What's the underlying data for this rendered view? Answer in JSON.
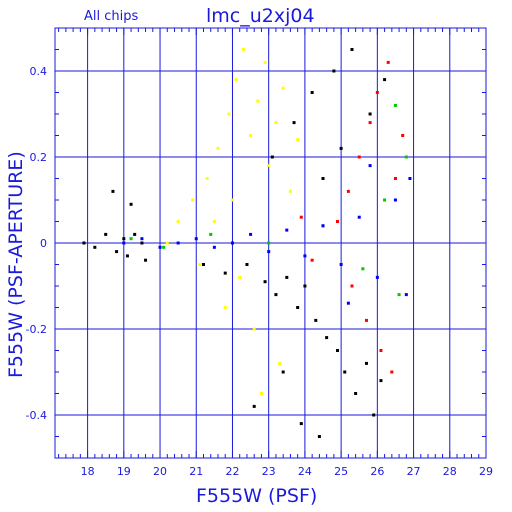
{
  "header": {
    "left_label": "All chips",
    "title": "lmc_u2xj04"
  },
  "chart_data": {
    "type": "scatter",
    "title": "lmc_u2xj04",
    "subtitle": "All chips",
    "xlabel": "F555W (PSF)",
    "ylabel": "F555W (PSF-APERTURE)",
    "xlim": [
      17.1,
      29.0
    ],
    "ylim": [
      -0.5,
      0.5
    ],
    "x_ticks": [
      18,
      19,
      20,
      21,
      22,
      23,
      24,
      25,
      26,
      27,
      28,
      29
    ],
    "x_tick_labels": [
      "18",
      "19",
      "20",
      "21",
      "22",
      "23",
      "24",
      "25",
      "26",
      "27",
      "28",
      "29"
    ],
    "y_ticks": [
      -0.4,
      -0.2,
      0,
      0.2,
      0.4
    ],
    "y_tick_labels": [
      "-0.4",
      "-0.2",
      "0",
      "0.2",
      "0.4"
    ],
    "grid": true,
    "legend": "none",
    "colors": {
      "axis": "#1a1adc",
      "grid": "#1a1adc",
      "point_colors": [
        "#000000",
        "#ffff00",
        "#ff0000",
        "#00c800",
        "#0000ff"
      ]
    },
    "series": [
      {
        "color": "#000000",
        "points": [
          {
            "x": 17.9,
            "y": 0.0
          },
          {
            "x": 18.2,
            "y": -0.01
          },
          {
            "x": 18.5,
            "y": 0.02
          },
          {
            "x": 18.8,
            "y": -0.02
          },
          {
            "x": 19.0,
            "y": 0.01
          },
          {
            "x": 19.1,
            "y": -0.03
          },
          {
            "x": 19.3,
            "y": 0.02
          },
          {
            "x": 19.5,
            "y": 0.0
          },
          {
            "x": 19.6,
            "y": -0.04
          },
          {
            "x": 18.7,
            "y": 0.12
          },
          {
            "x": 19.2,
            "y": 0.09
          },
          {
            "x": 21.2,
            "y": -0.05
          },
          {
            "x": 21.8,
            "y": -0.07
          },
          {
            "x": 22.4,
            "y": -0.05
          },
          {
            "x": 22.9,
            "y": -0.09
          },
          {
            "x": 23.2,
            "y": -0.12
          },
          {
            "x": 23.5,
            "y": -0.08
          },
          {
            "x": 23.8,
            "y": -0.15
          },
          {
            "x": 24.0,
            "y": -0.1
          },
          {
            "x": 24.3,
            "y": -0.18
          },
          {
            "x": 24.6,
            "y": -0.22
          },
          {
            "x": 24.9,
            "y": -0.25
          },
          {
            "x": 25.1,
            "y": -0.3
          },
          {
            "x": 25.4,
            "y": -0.35
          },
          {
            "x": 25.7,
            "y": -0.28
          },
          {
            "x": 25.9,
            "y": -0.4
          },
          {
            "x": 26.1,
            "y": -0.32
          },
          {
            "x": 23.4,
            "y": -0.3
          },
          {
            "x": 23.9,
            "y": -0.42
          },
          {
            "x": 24.4,
            "y": -0.45
          },
          {
            "x": 22.6,
            "y": -0.38
          },
          {
            "x": 23.1,
            "y": 0.2
          },
          {
            "x": 23.7,
            "y": 0.28
          },
          {
            "x": 24.2,
            "y": 0.35
          },
          {
            "x": 24.8,
            "y": 0.4
          },
          {
            "x": 25.3,
            "y": 0.45
          },
          {
            "x": 25.8,
            "y": 0.3
          },
          {
            "x": 26.2,
            "y": 0.38
          },
          {
            "x": 24.5,
            "y": 0.15
          },
          {
            "x": 25.0,
            "y": 0.22
          }
        ]
      },
      {
        "color": "#ffff00",
        "points": [
          {
            "x": 20.5,
            "y": 0.05
          },
          {
            "x": 20.9,
            "y": 0.1
          },
          {
            "x": 21.3,
            "y": 0.15
          },
          {
            "x": 21.6,
            "y": 0.22
          },
          {
            "x": 21.9,
            "y": 0.3
          },
          {
            "x": 22.1,
            "y": 0.38
          },
          {
            "x": 22.3,
            "y": 0.45
          },
          {
            "x": 22.5,
            "y": 0.25
          },
          {
            "x": 22.7,
            "y": 0.33
          },
          {
            "x": 22.9,
            "y": 0.42
          },
          {
            "x": 23.0,
            "y": 0.18
          },
          {
            "x": 23.2,
            "y": 0.28
          },
          {
            "x": 23.4,
            "y": 0.36
          },
          {
            "x": 23.6,
            "y": 0.12
          },
          {
            "x": 23.8,
            "y": 0.24
          },
          {
            "x": 22.0,
            "y": 0.1
          },
          {
            "x": 21.5,
            "y": 0.05
          },
          {
            "x": 22.2,
            "y": -0.08
          },
          {
            "x": 21.8,
            "y": -0.15
          },
          {
            "x": 22.6,
            "y": -0.2
          },
          {
            "x": 23.3,
            "y": -0.28
          },
          {
            "x": 22.8,
            "y": -0.35
          },
          {
            "x": 21.1,
            "y": -0.05
          },
          {
            "x": 20.2,
            "y": 0.0
          }
        ]
      },
      {
        "color": "#ff0000",
        "points": [
          {
            "x": 24.9,
            "y": 0.05
          },
          {
            "x": 25.2,
            "y": 0.12
          },
          {
            "x": 25.5,
            "y": 0.2
          },
          {
            "x": 25.8,
            "y": 0.28
          },
          {
            "x": 26.0,
            "y": 0.35
          },
          {
            "x": 26.3,
            "y": 0.42
          },
          {
            "x": 26.5,
            "y": 0.15
          },
          {
            "x": 26.7,
            "y": 0.25
          },
          {
            "x": 25.3,
            "y": -0.1
          },
          {
            "x": 25.7,
            "y": -0.18
          },
          {
            "x": 26.1,
            "y": -0.25
          },
          {
            "x": 26.4,
            "y": -0.3
          },
          {
            "x": 24.2,
            "y": -0.04
          },
          {
            "x": 23.9,
            "y": 0.06
          }
        ]
      },
      {
        "color": "#00c800",
        "points": [
          {
            "x": 19.2,
            "y": 0.01
          },
          {
            "x": 20.1,
            "y": -0.01
          },
          {
            "x": 21.4,
            "y": 0.02
          },
          {
            "x": 23.0,
            "y": 0.0
          },
          {
            "x": 24.5,
            "y": 0.04
          },
          {
            "x": 25.6,
            "y": -0.06
          },
          {
            "x": 26.2,
            "y": 0.1
          },
          {
            "x": 26.6,
            "y": -0.12
          },
          {
            "x": 26.8,
            "y": 0.2
          },
          {
            "x": 26.5,
            "y": 0.32
          }
        ]
      },
      {
        "color": "#0000ff",
        "points": [
          {
            "x": 19.0,
            "y": 0.0
          },
          {
            "x": 19.5,
            "y": 0.01
          },
          {
            "x": 20.0,
            "y": -0.01
          },
          {
            "x": 20.5,
            "y": 0.0
          },
          {
            "x": 21.0,
            "y": 0.01
          },
          {
            "x": 21.5,
            "y": -0.01
          },
          {
            "x": 22.0,
            "y": 0.0
          },
          {
            "x": 22.5,
            "y": 0.02
          },
          {
            "x": 23.0,
            "y": -0.02
          },
          {
            "x": 23.5,
            "y": 0.03
          },
          {
            "x": 24.0,
            "y": -0.03
          },
          {
            "x": 24.5,
            "y": 0.04
          },
          {
            "x": 25.0,
            "y": -0.05
          },
          {
            "x": 25.5,
            "y": 0.06
          },
          {
            "x": 26.0,
            "y": -0.08
          },
          {
            "x": 26.5,
            "y": 0.1
          },
          {
            "x": 26.8,
            "y": -0.12
          },
          {
            "x": 26.9,
            "y": 0.15
          },
          {
            "x": 25.8,
            "y": 0.18
          },
          {
            "x": 25.2,
            "y": -0.14
          }
        ]
      }
    ]
  }
}
